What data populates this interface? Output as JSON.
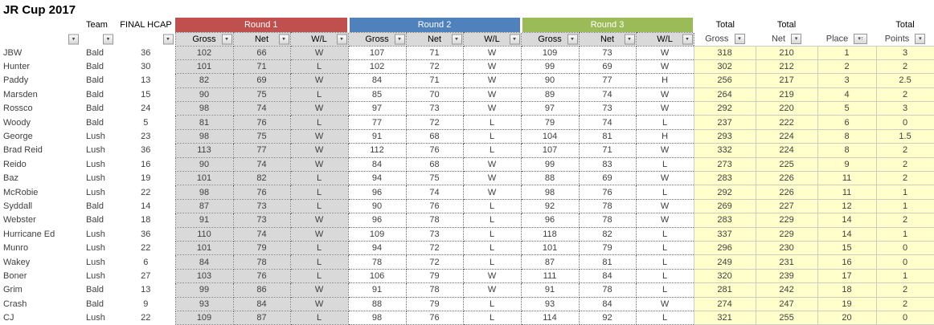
{
  "title": "JR Cup 2017",
  "icons": {
    "filter_dropdown": "▾",
    "sort_ascending": "↑"
  },
  "colors": {
    "round1": "#C0504D",
    "round2": "#4F81BD",
    "round3": "#9BBB59",
    "round1_cell_bg": "#D9D9D9",
    "totals_cell_bg": "#FFFFCC"
  },
  "header": {
    "team": "Team",
    "final_hcap": "FINAL HCAP",
    "rounds": [
      {
        "label": "Round 1",
        "color": "#C0504D"
      },
      {
        "label": "Round 2",
        "color": "#4F81BD"
      },
      {
        "label": "Round 3",
        "color": "#9BBB59"
      }
    ],
    "sub": {
      "gross": "Gross",
      "net": "Net",
      "wl": "W/L"
    },
    "totals": [
      {
        "top": "Total",
        "bottom": "Gross"
      },
      {
        "top": "Total",
        "bottom": "Net"
      },
      {
        "top": "",
        "bottom": "Place"
      },
      {
        "top": "Total",
        "bottom": "Points"
      }
    ]
  },
  "rows": [
    {
      "name": "JBW",
      "team": "Bald",
      "hcap": 36,
      "r1": [
        102,
        66,
        "W"
      ],
      "r2": [
        107,
        71,
        "W"
      ],
      "r3": [
        109,
        73,
        "W"
      ],
      "total_gross": 318,
      "total_net": 210,
      "place": 1,
      "points": 3
    },
    {
      "name": "Hunter",
      "team": "Bald",
      "hcap": 30,
      "r1": [
        101,
        71,
        "L"
      ],
      "r2": [
        102,
        72,
        "W"
      ],
      "r3": [
        99,
        69,
        "W"
      ],
      "total_gross": 302,
      "total_net": 212,
      "place": 2,
      "points": 2
    },
    {
      "name": "Paddy",
      "team": "Bald",
      "hcap": 13,
      "r1": [
        82,
        69,
        "W"
      ],
      "r2": [
        84,
        71,
        "W"
      ],
      "r3": [
        90,
        77,
        "H"
      ],
      "total_gross": 256,
      "total_net": 217,
      "place": 3,
      "points": 2.5
    },
    {
      "name": "Marsden",
      "team": "Bald",
      "hcap": 15,
      "r1": [
        90,
        75,
        "L"
      ],
      "r2": [
        85,
        70,
        "W"
      ],
      "r3": [
        89,
        74,
        "W"
      ],
      "total_gross": 264,
      "total_net": 219,
      "place": 4,
      "points": 2
    },
    {
      "name": "Rossco",
      "team": "Bald",
      "hcap": 24,
      "r1": [
        98,
        74,
        "W"
      ],
      "r2": [
        97,
        73,
        "W"
      ],
      "r3": [
        97,
        73,
        "W"
      ],
      "total_gross": 292,
      "total_net": 220,
      "place": 5,
      "points": 3
    },
    {
      "name": "Woody",
      "team": "Bald",
      "hcap": 5,
      "r1": [
        81,
        76,
        "L"
      ],
      "r2": [
        77,
        72,
        "L"
      ],
      "r3": [
        79,
        74,
        "L"
      ],
      "total_gross": 237,
      "total_net": 222,
      "place": 6,
      "points": 0
    },
    {
      "name": "George",
      "team": "Lush",
      "hcap": 23,
      "r1": [
        98,
        75,
        "W"
      ],
      "r2": [
        91,
        68,
        "L"
      ],
      "r3": [
        104,
        81,
        "H"
      ],
      "total_gross": 293,
      "total_net": 224,
      "place": 8,
      "points": 1.5
    },
    {
      "name": "Brad Reid",
      "team": "Lush",
      "hcap": 36,
      "r1": [
        113,
        77,
        "W"
      ],
      "r2": [
        112,
        76,
        "L"
      ],
      "r3": [
        107,
        71,
        "W"
      ],
      "total_gross": 332,
      "total_net": 224,
      "place": 8,
      "points": 2
    },
    {
      "name": "Reido",
      "team": "Lush",
      "hcap": 16,
      "r1": [
        90,
        74,
        "W"
      ],
      "r2": [
        84,
        68,
        "W"
      ],
      "r3": [
        99,
        83,
        "L"
      ],
      "total_gross": 273,
      "total_net": 225,
      "place": 9,
      "points": 2
    },
    {
      "name": "Baz",
      "team": "Lush",
      "hcap": 19,
      "r1": [
        101,
        82,
        "L"
      ],
      "r2": [
        94,
        75,
        "W"
      ],
      "r3": [
        88,
        69,
        "W"
      ],
      "total_gross": 283,
      "total_net": 226,
      "place": 11,
      "points": 2
    },
    {
      "name": "McRobie",
      "team": "Lush",
      "hcap": 22,
      "r1": [
        98,
        76,
        "L"
      ],
      "r2": [
        96,
        74,
        "W"
      ],
      "r3": [
        98,
        76,
        "L"
      ],
      "total_gross": 292,
      "total_net": 226,
      "place": 11,
      "points": 1
    },
    {
      "name": "Syddall",
      "team": "Bald",
      "hcap": 14,
      "r1": [
        87,
        73,
        "L"
      ],
      "r2": [
        90,
        76,
        "L"
      ],
      "r3": [
        92,
        78,
        "W"
      ],
      "total_gross": 269,
      "total_net": 227,
      "place": 12,
      "points": 1
    },
    {
      "name": "Webster",
      "team": "Bald",
      "hcap": 18,
      "r1": [
        91,
        73,
        "W"
      ],
      "r2": [
        96,
        78,
        "L"
      ],
      "r3": [
        96,
        78,
        "W"
      ],
      "total_gross": 283,
      "total_net": 229,
      "place": 14,
      "points": 2
    },
    {
      "name": "Hurricane Ed",
      "team": "Lush",
      "hcap": 36,
      "r1": [
        110,
        74,
        "W"
      ],
      "r2": [
        109,
        73,
        "L"
      ],
      "r3": [
        118,
        82,
        "L"
      ],
      "total_gross": 337,
      "total_net": 229,
      "place": 14,
      "points": 1
    },
    {
      "name": "Munro",
      "team": "Lush",
      "hcap": 22,
      "r1": [
        101,
        79,
        "L"
      ],
      "r2": [
        94,
        72,
        "L"
      ],
      "r3": [
        101,
        79,
        "L"
      ],
      "total_gross": 296,
      "total_net": 230,
      "place": 15,
      "points": 0
    },
    {
      "name": "Wakey",
      "team": "Lush",
      "hcap": 6,
      "r1": [
        84,
        78,
        "L"
      ],
      "r2": [
        78,
        72,
        "L"
      ],
      "r3": [
        87,
        81,
        "L"
      ],
      "total_gross": 249,
      "total_net": 231,
      "place": 16,
      "points": 0
    },
    {
      "name": "Boner",
      "team": "Lush",
      "hcap": 27,
      "r1": [
        103,
        76,
        "L"
      ],
      "r2": [
        106,
        79,
        "W"
      ],
      "r3": [
        111,
        84,
        "L"
      ],
      "total_gross": 320,
      "total_net": 239,
      "place": 17,
      "points": 1
    },
    {
      "name": "Grim",
      "team": "Bald",
      "hcap": 13,
      "r1": [
        99,
        86,
        "W"
      ],
      "r2": [
        91,
        78,
        "W"
      ],
      "r3": [
        91,
        78,
        "L"
      ],
      "total_gross": 281,
      "total_net": 242,
      "place": 18,
      "points": 2
    },
    {
      "name": "Crash",
      "team": "Bald",
      "hcap": 9,
      "r1": [
        93,
        84,
        "W"
      ],
      "r2": [
        88,
        79,
        "L"
      ],
      "r3": [
        93,
        84,
        "W"
      ],
      "total_gross": 274,
      "total_net": 247,
      "place": 19,
      "points": 2
    },
    {
      "name": "CJ",
      "team": "Lush",
      "hcap": 22,
      "r1": [
        109,
        87,
        "L"
      ],
      "r2": [
        98,
        76,
        "L"
      ],
      "r3": [
        114,
        92,
        "L"
      ],
      "total_gross": 321,
      "total_net": 255,
      "place": 20,
      "points": 0
    }
  ]
}
